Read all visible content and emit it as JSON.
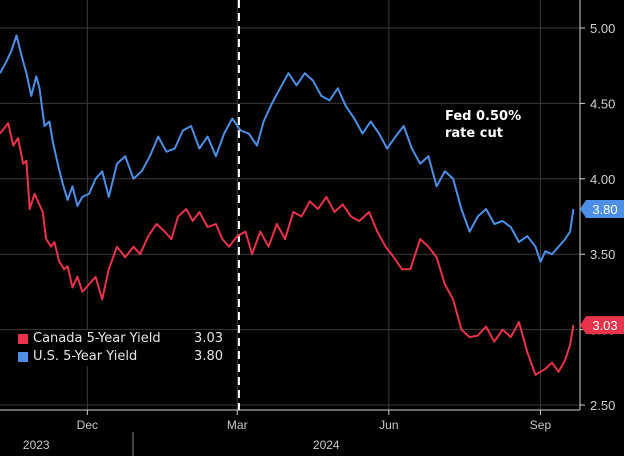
{
  "chart_data": {
    "type": "line",
    "annotation": {
      "text_line1": "Fed 0.50%",
      "text_line2": "rate cut",
      "x": 117
    },
    "x_ticks": [
      {
        "label": "Dec",
        "x": 25
      },
      {
        "label": "Mar",
        "x": 116
      },
      {
        "label": "Jun",
        "x": 208
      },
      {
        "label": "Sep",
        "x": 300
      }
    ],
    "year_labels": [
      {
        "label": "2023",
        "x": -6
      },
      {
        "label": "2024",
        "x": 170
      }
    ],
    "xlim": [
      -28,
      324
    ],
    "ylim": [
      2.5,
      5.0
    ],
    "y_ticks": [
      2.5,
      3.0,
      3.5,
      4.0,
      4.5,
      5.0
    ],
    "y_tick_labels": [
      "2.50",
      "3.00",
      "3.50",
      "4.00",
      "4.50",
      "5.00"
    ],
    "series": [
      {
        "name": "Canada 5-Year Yield",
        "last_label": "3.03",
        "color": "#e8334a",
        "x": [
          -28,
          -23,
          -20,
          -17,
          -14,
          -12,
          -10,
          -7,
          -5,
          -2,
          0,
          3,
          5,
          8,
          11,
          13,
          16,
          19,
          22,
          26,
          30,
          34,
          38,
          43,
          48,
          53,
          57,
          62,
          67,
          72,
          76,
          80,
          85,
          89,
          93,
          98,
          103,
          107,
          111,
          116,
          121,
          125,
          130,
          135,
          140,
          145,
          150,
          155,
          160,
          165,
          170,
          175,
          180,
          185,
          190,
          196,
          201,
          206,
          211,
          216,
          221,
          227,
          232,
          237,
          242,
          247,
          252,
          257,
          262,
          267,
          272,
          277,
          282,
          287,
          292,
          297,
          300,
          303,
          307,
          311,
          315,
          318,
          320
        ],
        "y": [
          4.3,
          4.37,
          4.22,
          4.27,
          4.1,
          4.12,
          3.8,
          3.9,
          3.85,
          3.78,
          3.6,
          3.55,
          3.58,
          3.45,
          3.4,
          3.42,
          3.28,
          3.35,
          3.25,
          3.3,
          3.35,
          3.2,
          3.4,
          3.55,
          3.48,
          3.55,
          3.5,
          3.62,
          3.7,
          3.65,
          3.6,
          3.75,
          3.8,
          3.72,
          3.78,
          3.68,
          3.7,
          3.6,
          3.55,
          3.62,
          3.65,
          3.5,
          3.65,
          3.55,
          3.7,
          3.6,
          3.78,
          3.75,
          3.85,
          3.8,
          3.88,
          3.78,
          3.83,
          3.75,
          3.72,
          3.78,
          3.65,
          3.55,
          3.48,
          3.4,
          3.4,
          3.6,
          3.55,
          3.48,
          3.3,
          3.2,
          3.0,
          2.95,
          2.96,
          3.02,
          2.92,
          3.0,
          2.95,
          3.05,
          2.85,
          2.7,
          2.72,
          2.74,
          2.78,
          2.72,
          2.8,
          2.9,
          3.03
        ]
      },
      {
        "name": "U.S. 5-Year Yield",
        "last_label": "3.80",
        "color": "#4d8fe6",
        "x": [
          -28,
          -24,
          -21,
          -18,
          -15,
          -12,
          -9,
          -6,
          -4,
          -1,
          2,
          4,
          7,
          10,
          13,
          16,
          19,
          22,
          26,
          30,
          34,
          38,
          43,
          48,
          53,
          58,
          63,
          68,
          73,
          78,
          83,
          88,
          93,
          98,
          103,
          108,
          113,
          118,
          123,
          128,
          132,
          137,
          142,
          147,
          152,
          157,
          162,
          167,
          172,
          177,
          182,
          187,
          192,
          197,
          202,
          207,
          212,
          217,
          222,
          227,
          232,
          237,
          242,
          247,
          252,
          257,
          262,
          267,
          272,
          277,
          282,
          287,
          292,
          297,
          300,
          303,
          307,
          311,
          315,
          318,
          320
        ],
        "y": [
          4.7,
          4.78,
          4.85,
          4.95,
          4.82,
          4.7,
          4.55,
          4.68,
          4.6,
          4.35,
          4.38,
          4.25,
          4.1,
          3.97,
          3.86,
          3.95,
          3.82,
          3.88,
          3.9,
          4.0,
          4.05,
          3.88,
          4.1,
          4.15,
          4.0,
          4.05,
          4.15,
          4.28,
          4.18,
          4.2,
          4.32,
          4.35,
          4.2,
          4.28,
          4.15,
          4.3,
          4.4,
          4.32,
          4.3,
          4.22,
          4.38,
          4.5,
          4.6,
          4.7,
          4.62,
          4.7,
          4.65,
          4.55,
          4.52,
          4.6,
          4.48,
          4.4,
          4.3,
          4.38,
          4.3,
          4.2,
          4.28,
          4.35,
          4.2,
          4.1,
          4.15,
          3.95,
          4.05,
          4.0,
          3.8,
          3.65,
          3.75,
          3.8,
          3.7,
          3.72,
          3.68,
          3.58,
          3.62,
          3.55,
          3.45,
          3.52,
          3.5,
          3.55,
          3.6,
          3.65,
          3.8
        ]
      }
    ],
    "legend": [
      {
        "name": "Canada 5-Year Yield",
        "value": "3.03",
        "color": "#e8334a"
      },
      {
        "name": "U.S. 5-Year Yield",
        "value": "3.80",
        "color": "#4d8fe6"
      }
    ],
    "colors": {
      "background": "#000000",
      "grid": "#3a3a3a",
      "axis": "#d0d0d0",
      "marker_fill_canada": "#e8334a",
      "marker_fill_us": "#4d8fe6"
    }
  }
}
